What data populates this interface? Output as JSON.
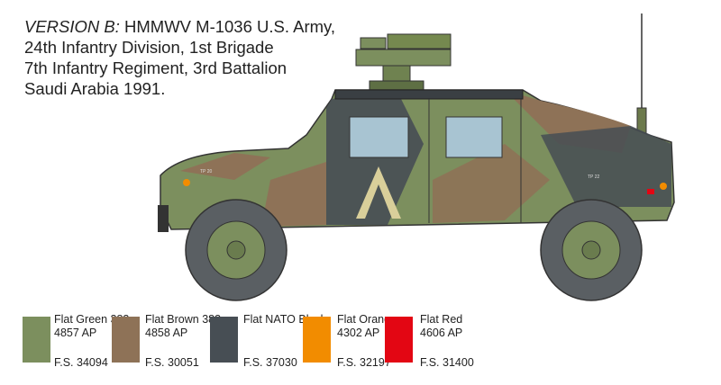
{
  "caption": {
    "version": "VERSION B:",
    "lines": [
      "HMMWV M-1036 U.S. Army,",
      "24th Infantry Division, 1st Brigade",
      "7th Infantry Regiment, 3rd Battalion",
      "Saudi Arabia 1991."
    ]
  },
  "vehicle_markings": [
    "TP 20",
    "TP 22"
  ],
  "paints": [
    {
      "name": "Flat Green 383",
      "code": "4857 AP",
      "fs": "F.S. 34094",
      "color": "#7c8f5e"
    },
    {
      "name": "Flat Brown 383",
      "code": "4858 AP",
      "fs": "F.S. 30051",
      "color": "#8e7257"
    },
    {
      "name": "Flat NATO Black",
      "code": "",
      "fs": "F.S. 37030",
      "color": "#474e54"
    },
    {
      "name": "Flat Orange",
      "code": "4302 AP",
      "fs": "F.S. 32197",
      "color": "#f28c00"
    },
    {
      "name": "Flat Red",
      "code": "4606 AP",
      "fs": "F.S. 31400",
      "color": "#e30613"
    }
  ]
}
